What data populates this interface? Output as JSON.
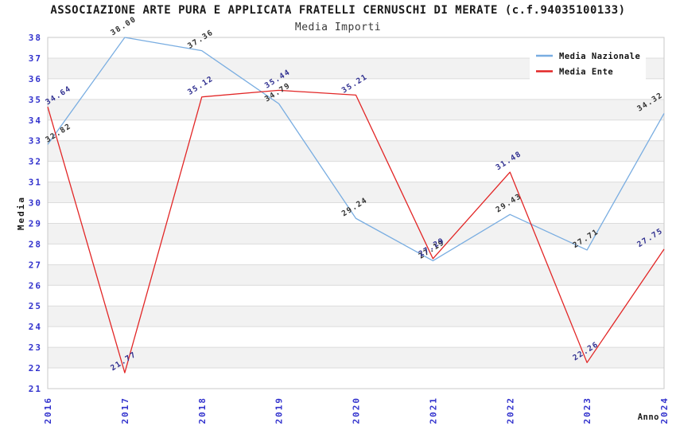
{
  "header": {
    "title": "ASSOCIAZIONE ARTE PURA E APPLICATA FRATELLI CERNUSCHI DI MERATE (c.f.94035100133)",
    "subtitle": "Media Importi"
  },
  "chart_data": {
    "type": "line",
    "title": "ASSOCIAZIONE ARTE PURA E APPLICATA FRATELLI CERNUSCHI DI MERATE (c.f.94035100133)",
    "subtitle": "Media Importi",
    "xlabel": "Anno",
    "ylabel": "Media",
    "categories": [
      "2016",
      "2017",
      "2018",
      "2019",
      "2020",
      "2021",
      "2022",
      "2023",
      "2024"
    ],
    "series": [
      {
        "name": "Media Nazionale",
        "color": "#79ade1",
        "label_color": "#303030",
        "values": [
          32.82,
          38.0,
          37.36,
          34.79,
          29.24,
          27.19,
          29.43,
          27.71,
          34.32
        ]
      },
      {
        "name": "Media Ente",
        "color": "#e22626",
        "label_color": "#2e2e8f",
        "values": [
          34.64,
          21.77,
          35.12,
          35.44,
          35.21,
          27.29,
          31.48,
          22.26,
          27.75
        ]
      }
    ],
    "ylim": [
      21,
      38
    ],
    "ytick_step": 1,
    "grid": true,
    "legend_position": "top-right",
    "styles": {
      "band_colors": [
        "#ffffff",
        "#f2f2f2"
      ],
      "grid_color": "#dcdcdc",
      "border_color": "#c9c9c9",
      "tick_label_color": "#3232cd",
      "axis_label_color": "#1a1a1a",
      "legend_text_color": "#111111",
      "background": "#ffffff"
    }
  }
}
